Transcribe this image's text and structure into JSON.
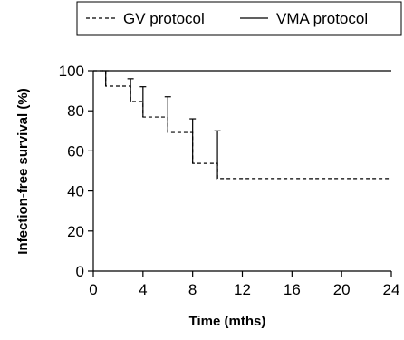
{
  "chart_data": {
    "type": "line",
    "xlabel": "Time (mths)",
    "ylabel": "Infection-free survival (%)",
    "xlim": [
      0,
      24
    ],
    "ylim": [
      0,
      100
    ],
    "xticks": [
      0,
      4,
      8,
      12,
      16,
      20,
      24
    ],
    "yticks": [
      0,
      20,
      40,
      60,
      80,
      100
    ],
    "grid": false,
    "legend_position": "top",
    "series": [
      {
        "name": "GV protocol",
        "line_style": "dashed",
        "step": true,
        "x": [
          0,
          1,
          3,
          4,
          6,
          8,
          10,
          24
        ],
        "values": [
          100,
          92.3,
          84.6,
          76.9,
          69.2,
          53.8,
          46.2,
          46.2
        ],
        "error_upper": [
          {
            "x": 1,
            "value": 100
          },
          {
            "x": 3,
            "value": 96
          },
          {
            "x": 4,
            "value": 92
          },
          {
            "x": 6,
            "value": 87
          },
          {
            "x": 8,
            "value": 76
          },
          {
            "x": 10,
            "value": 70
          }
        ]
      },
      {
        "name": "VMA protocol",
        "line_style": "solid",
        "step": true,
        "x": [
          0,
          24
        ],
        "values": [
          100,
          100
        ]
      }
    ]
  }
}
